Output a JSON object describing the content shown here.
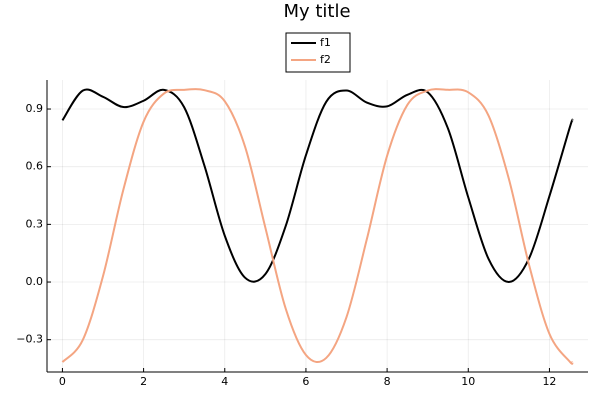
{
  "chart_data": {
    "type": "line",
    "title": "My title",
    "x": [
      0,
      0.5,
      1,
      1.5,
      2,
      2.5,
      3,
      3.5,
      4,
      4.5,
      5,
      5.5,
      6,
      6.5,
      7,
      7.5,
      8,
      8.5,
      9,
      9.5,
      10,
      10.5,
      11,
      11.5,
      12,
      12.5,
      12.566
    ],
    "series": [
      {
        "name": "f1",
        "color": "#000000",
        "values": [
          0.841,
          0.9958,
          0.9636,
          0.9103,
          0.9431,
          0.9996,
          0.9091,
          0.6045,
          0.2408,
          0.0225,
          0.0411,
          0.2903,
          0.6598,
          0.9375,
          0.9963,
          0.9334,
          0.9136,
          0.9741,
          0.9875,
          0.7986,
          0.4404,
          0.12,
          0,
          0.1242,
          0.447,
          0.8035,
          0.841
        ]
      },
      {
        "name": "f2",
        "color": "#f4a582",
        "values": [
          -0.4161,
          -0.302,
          0.0305,
          0.4795,
          0.8342,
          0.9803,
          0.9999,
          0.998,
          0.9405,
          0.7042,
          0.2832,
          -0.1375,
          -0.3796,
          -0.3948,
          -0.1821,
          0.2223,
          0.6567,
          0.9218,
          0.9961,
          1.0,
          0.9871,
          0.8655,
          0.5367,
          0.0874,
          -0.2697,
          -0.4142,
          -0.4161
        ]
      }
    ],
    "xlim": [
      -0.38,
      12.95
    ],
    "xticks": [
      0,
      2,
      4,
      6,
      8,
      10,
      12
    ],
    "ylim": [
      -0.468,
      1.051
    ],
    "yticks": [
      {
        "value": -0.3,
        "label": "−0.3"
      },
      {
        "value": 0,
        "label": "0.0"
      },
      0.3,
      0.6,
      0.9
    ],
    "grid": true,
    "legend": "top"
  }
}
